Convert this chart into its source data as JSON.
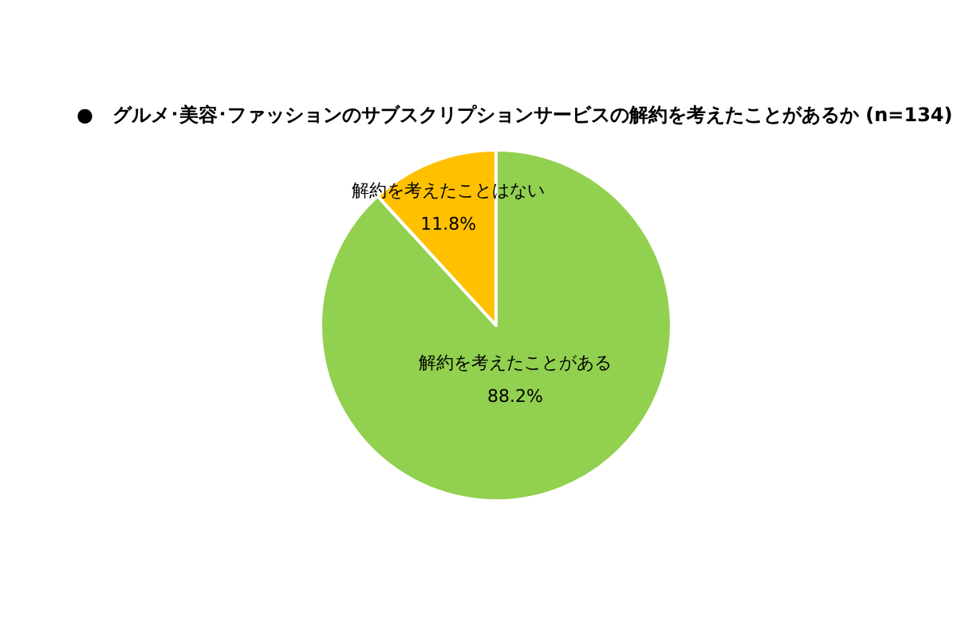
{
  "chart_data": {
    "type": "pie",
    "title": "●　グルメ･美容･ファッションのサブスクリプションサービスの解約を考えたことがあるか (n=134)",
    "categories": [
      "解約を考えたことがある",
      "解約を考えたことはない"
    ],
    "values": [
      88.2,
      11.8
    ],
    "colors": [
      "#92d050",
      "#ffc000"
    ],
    "value_labels": [
      "88.2%",
      "11.8%"
    ]
  }
}
